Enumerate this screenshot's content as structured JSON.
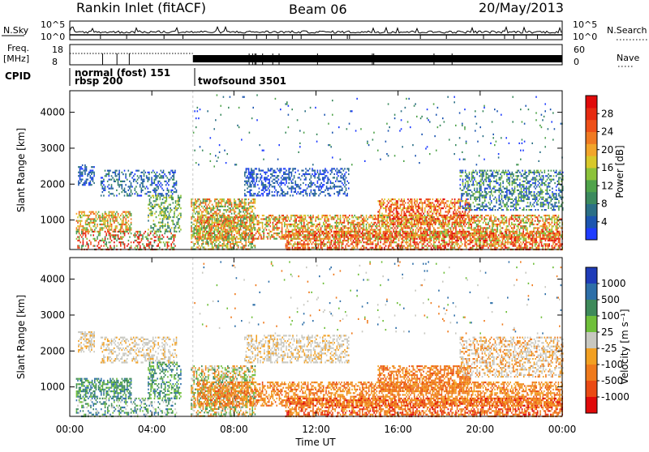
{
  "header": {
    "title": "Rankin Inlet (fitACF)",
    "beam": "Beam 06",
    "date": "20/May/2013"
  },
  "left_labels": {
    "nsky": "N.Sky",
    "freq": "Freq.",
    "freq_unit": "[MHz]",
    "cpid": "CPID"
  },
  "right_labels": {
    "nsearch": "N.Search",
    "nave": "Nave"
  },
  "ticks": {
    "nsky_top": "10^5",
    "nsky_bottom": "10^0",
    "freq_top": "18",
    "freq_bottom": "8",
    "nave_top": "60",
    "nave_bottom": "0"
  },
  "cpid_blocks": {
    "left_line1": "normal (fost)  151",
    "left_line2": "rbsp  200",
    "right": "twofsound  3501"
  },
  "x_axis": {
    "label": "Time UT",
    "ticks": [
      "00:00",
      "04:00",
      "08:00",
      "12:00",
      "16:00",
      "20:00",
      "00:00"
    ]
  },
  "chart_data": [
    {
      "type": "heatmap",
      "title": "",
      "xlabel": "",
      "ylabel": "Slant Range [km]",
      "xlim": [
        0,
        24
      ],
      "ylim": [
        180,
        4600
      ],
      "y_ticks": [
        "1000",
        "2000",
        "3000",
        "4000"
      ],
      "colorbar": {
        "label": "Power [dB]",
        "ticks": [
          "4",
          "8",
          "12",
          "16",
          "20",
          "24",
          "28"
        ],
        "colors": [
          "#1f3cff",
          "#1c55b0",
          "#2b6f86",
          "#3b8a5e",
          "#4fa34a",
          "#8cc23a",
          "#d8c82a",
          "#f2a52a",
          "#f07a22",
          "#ee5018",
          "#e62a10",
          "#e00a0a"
        ]
      }
    },
    {
      "type": "heatmap",
      "title": "",
      "xlabel": "Time UT",
      "ylabel": "Slant Range [km]",
      "xlim": [
        0,
        24
      ],
      "ylim": [
        180,
        4600
      ],
      "y_ticks": [
        "1000",
        "2000",
        "3000",
        "4000"
      ],
      "colorbar": {
        "label": "Velocity [m s⁻¹]",
        "ticks": [
          "1000",
          "500",
          "100",
          "25",
          "-25",
          "-100",
          "-500",
          "-1000"
        ],
        "colors": [
          "#1f3cb8",
          "#2e6fa8",
          "#3e8a5a",
          "#6fbf3a",
          "#c8c8c0",
          "#f2a022",
          "#ef7a1c",
          "#ea4a14",
          "#e00a0a"
        ]
      }
    }
  ]
}
